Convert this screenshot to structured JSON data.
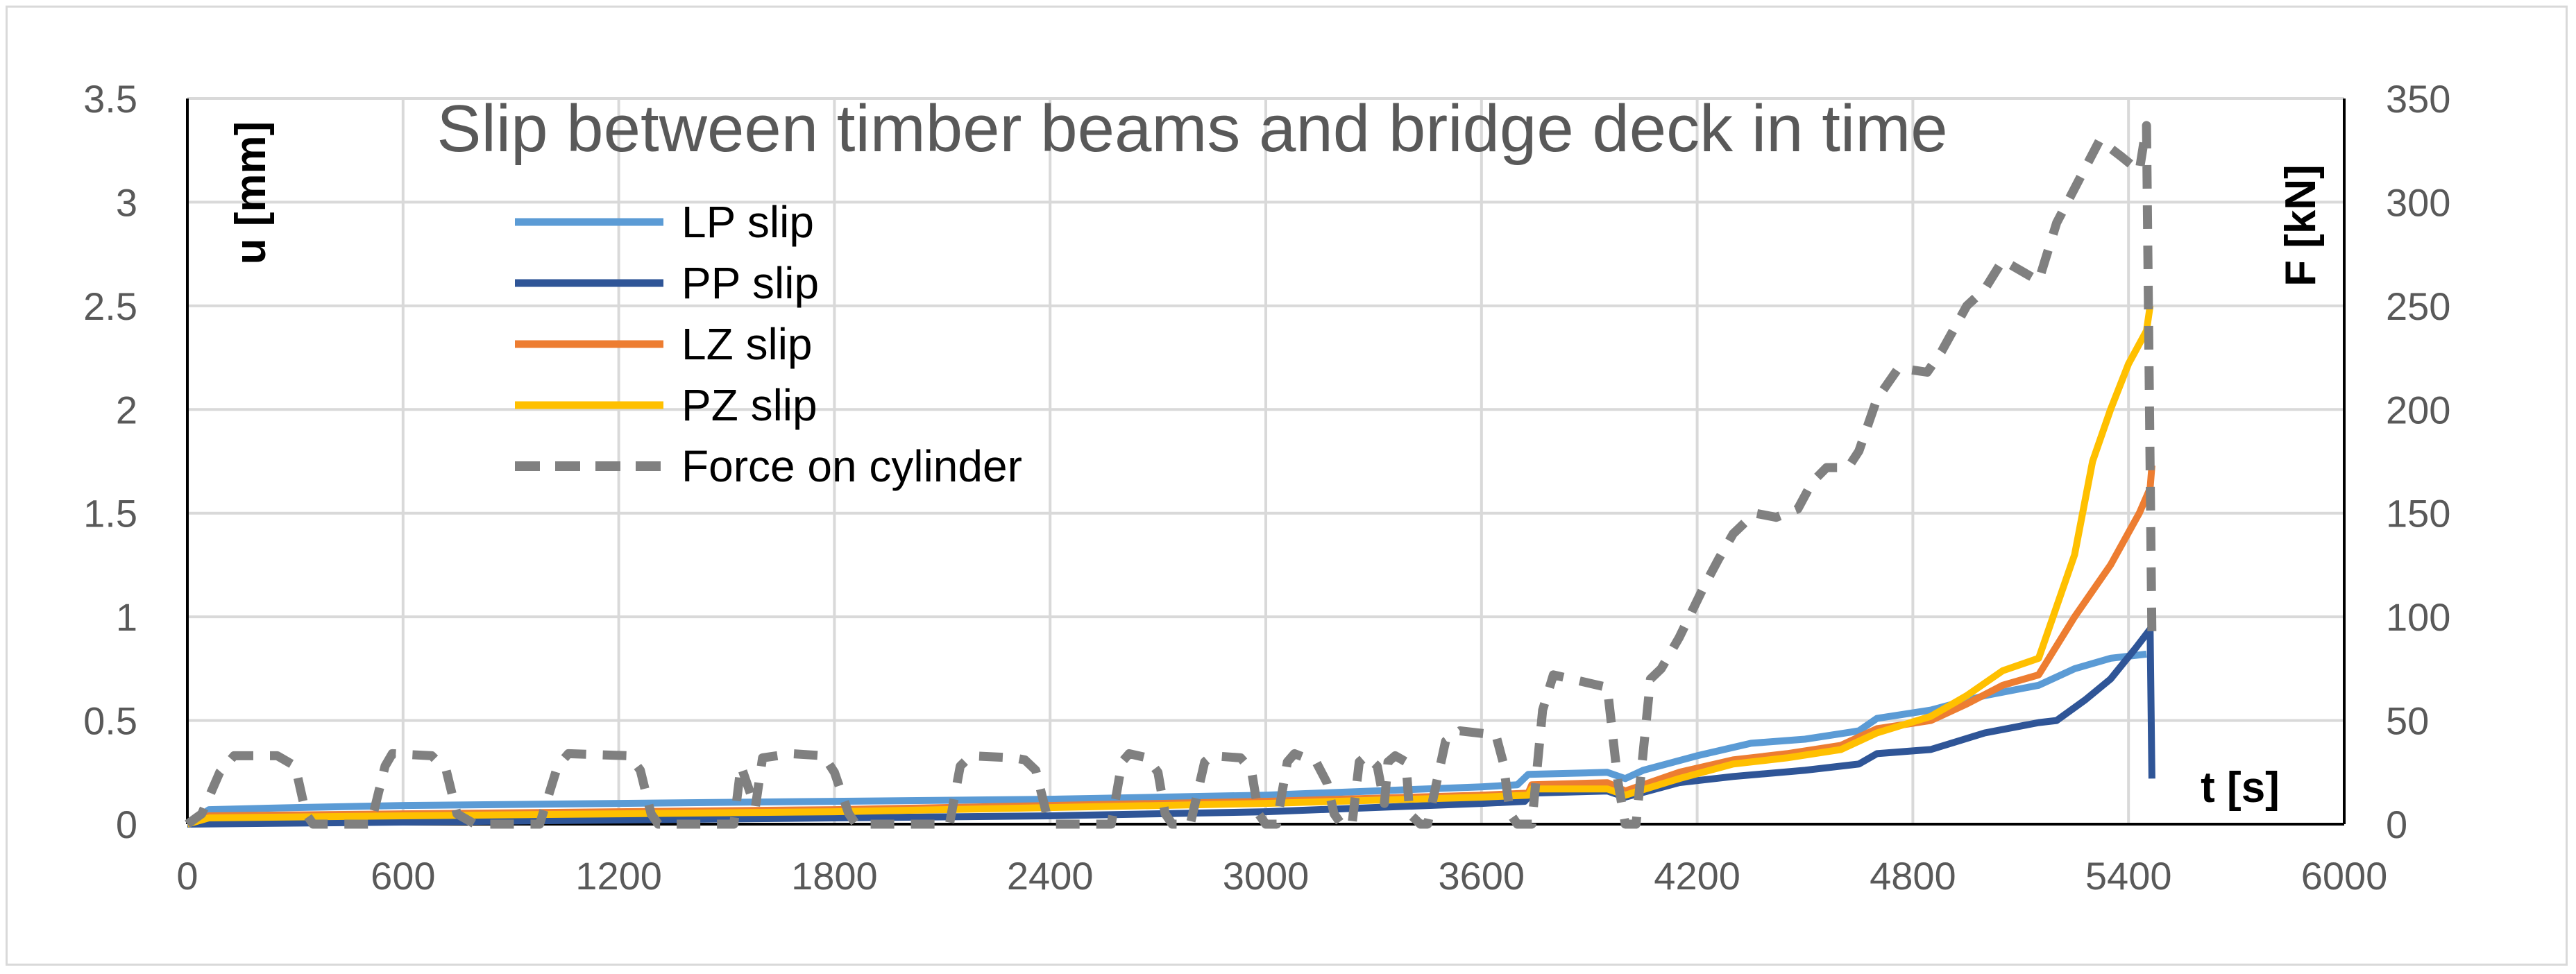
{
  "chart_data": {
    "type": "line",
    "title": "Slip between timber beams and bridge deck in time",
    "xlabel": "t [s]",
    "ylabel": "u [mm]",
    "y2label": "F [kN]",
    "xlim": [
      0,
      6000
    ],
    "xticks": [
      0,
      600,
      1200,
      1800,
      2400,
      3000,
      3600,
      4200,
      4800,
      5400,
      6000
    ],
    "ylim": [
      0,
      3.5
    ],
    "yticks": [
      "0",
      "0.5",
      "1",
      "1.5",
      "2",
      "2.5",
      "3",
      "3.5"
    ],
    "y2lim": [
      0,
      350
    ],
    "y2ticks": [
      "0",
      "50",
      "100",
      "150",
      "200",
      "250",
      "300",
      "350"
    ],
    "grid": true,
    "legend_position": "top-left",
    "series": [
      {
        "name": "LP slip",
        "color": "#5b9bd5",
        "axis": "left",
        "style": "solid",
        "points": [
          [
            0,
            0
          ],
          [
            60,
            0.07
          ],
          [
            300,
            0.08
          ],
          [
            600,
            0.09
          ],
          [
            1200,
            0.1
          ],
          [
            1800,
            0.11
          ],
          [
            2400,
            0.12
          ],
          [
            3000,
            0.14
          ],
          [
            3600,
            0.18
          ],
          [
            3700,
            0.19
          ],
          [
            3730,
            0.24
          ],
          [
            3950,
            0.25
          ],
          [
            4000,
            0.22
          ],
          [
            4050,
            0.26
          ],
          [
            4200,
            0.33
          ],
          [
            4350,
            0.39
          ],
          [
            4500,
            0.41
          ],
          [
            4650,
            0.45
          ],
          [
            4700,
            0.51
          ],
          [
            4850,
            0.55
          ],
          [
            5000,
            0.62
          ],
          [
            5150,
            0.67
          ],
          [
            5250,
            0.75
          ],
          [
            5350,
            0.8
          ],
          [
            5450,
            0.82
          ]
        ]
      },
      {
        "name": "PP slip",
        "color": "#2f5597",
        "axis": "left",
        "style": "solid",
        "points": [
          [
            0,
            0
          ],
          [
            600,
            0.01
          ],
          [
            1200,
            0.02
          ],
          [
            1800,
            0.03
          ],
          [
            2400,
            0.04
          ],
          [
            3000,
            0.06
          ],
          [
            3600,
            0.1
          ],
          [
            3720,
            0.11
          ],
          [
            3740,
            0.15
          ],
          [
            3950,
            0.16
          ],
          [
            4000,
            0.13
          ],
          [
            4150,
            0.2
          ],
          [
            4300,
            0.23
          ],
          [
            4500,
            0.26
          ],
          [
            4650,
            0.29
          ],
          [
            4700,
            0.34
          ],
          [
            4850,
            0.36
          ],
          [
            5000,
            0.44
          ],
          [
            5150,
            0.49
          ],
          [
            5200,
            0.5
          ],
          [
            5280,
            0.6
          ],
          [
            5350,
            0.7
          ],
          [
            5420,
            0.85
          ],
          [
            5460,
            0.94
          ],
          [
            5465,
            0.22
          ]
        ]
      },
      {
        "name": "LZ slip",
        "color": "#ed7d31",
        "axis": "left",
        "style": "solid",
        "points": [
          [
            0,
            0
          ],
          [
            60,
            0.04
          ],
          [
            600,
            0.05
          ],
          [
            1200,
            0.06
          ],
          [
            1800,
            0.07
          ],
          [
            2400,
            0.09
          ],
          [
            3000,
            0.11
          ],
          [
            3600,
            0.14
          ],
          [
            3730,
            0.15
          ],
          [
            3740,
            0.19
          ],
          [
            3950,
            0.2
          ],
          [
            4000,
            0.16
          ],
          [
            4150,
            0.25
          ],
          [
            4300,
            0.31
          ],
          [
            4450,
            0.34
          ],
          [
            4600,
            0.38
          ],
          [
            4700,
            0.46
          ],
          [
            4850,
            0.5
          ],
          [
            4950,
            0.58
          ],
          [
            5050,
            0.67
          ],
          [
            5150,
            0.72
          ],
          [
            5250,
            1.0
          ],
          [
            5350,
            1.25
          ],
          [
            5430,
            1.5
          ],
          [
            5460,
            1.62
          ],
          [
            5465,
            1.73
          ]
        ]
      },
      {
        "name": "PZ slip",
        "color": "#ffc000",
        "axis": "left",
        "style": "solid",
        "points": [
          [
            0,
            0
          ],
          [
            60,
            0.03
          ],
          [
            600,
            0.04
          ],
          [
            1200,
            0.05
          ],
          [
            1800,
            0.06
          ],
          [
            2400,
            0.08
          ],
          [
            3000,
            0.1
          ],
          [
            3600,
            0.13
          ],
          [
            3730,
            0.14
          ],
          [
            3740,
            0.17
          ],
          [
            3950,
            0.17
          ],
          [
            4000,
            0.14
          ],
          [
            4150,
            0.22
          ],
          [
            4300,
            0.29
          ],
          [
            4450,
            0.32
          ],
          [
            4600,
            0.36
          ],
          [
            4700,
            0.44
          ],
          [
            4850,
            0.52
          ],
          [
            4950,
            0.62
          ],
          [
            5050,
            0.74
          ],
          [
            5150,
            0.8
          ],
          [
            5250,
            1.3
          ],
          [
            5300,
            1.75
          ],
          [
            5350,
            2.0
          ],
          [
            5400,
            2.22
          ],
          [
            5450,
            2.38
          ],
          [
            5460,
            2.5
          ]
        ]
      },
      {
        "name": "Force on cylinder",
        "color": "#808080",
        "axis": "right",
        "style": "dashed",
        "points": [
          [
            0,
            0
          ],
          [
            40,
            5
          ],
          [
            90,
            25
          ],
          [
            130,
            33
          ],
          [
            250,
            33
          ],
          [
            300,
            28
          ],
          [
            330,
            5
          ],
          [
            350,
            0
          ],
          [
            510,
            0
          ],
          [
            550,
            28
          ],
          [
            570,
            34
          ],
          [
            680,
            33
          ],
          [
            720,
            26
          ],
          [
            750,
            5
          ],
          [
            800,
            0
          ],
          [
            980,
            0
          ],
          [
            1030,
            28
          ],
          [
            1060,
            34
          ],
          [
            1230,
            33
          ],
          [
            1260,
            26
          ],
          [
            1290,
            5
          ],
          [
            1310,
            0
          ],
          [
            1520,
            0
          ],
          [
            1540,
            28
          ],
          [
            1580,
            8
          ],
          [
            1600,
            32
          ],
          [
            1680,
            34
          ],
          [
            1770,
            33
          ],
          [
            1800,
            25
          ],
          [
            1840,
            5
          ],
          [
            1860,
            0
          ],
          [
            2120,
            0
          ],
          [
            2150,
            28
          ],
          [
            2180,
            33
          ],
          [
            2300,
            32
          ],
          [
            2330,
            31
          ],
          [
            2360,
            26
          ],
          [
            2390,
            5
          ],
          [
            2410,
            0
          ],
          [
            2570,
            0
          ],
          [
            2600,
            30
          ],
          [
            2620,
            34
          ],
          [
            2670,
            32
          ],
          [
            2700,
            25
          ],
          [
            2720,
            5
          ],
          [
            2740,
            0
          ],
          [
            2790,
            0
          ],
          [
            2830,
            30
          ],
          [
            2850,
            33
          ],
          [
            2930,
            32
          ],
          [
            2960,
            26
          ],
          [
            2980,
            5
          ],
          [
            3000,
            0
          ],
          [
            3030,
            0
          ],
          [
            3060,
            30
          ],
          [
            3080,
            34
          ],
          [
            3140,
            30
          ],
          [
            3170,
            20
          ],
          [
            3190,
            5
          ],
          [
            3210,
            0
          ],
          [
            3240,
            0
          ],
          [
            3260,
            30
          ],
          [
            3280,
            33
          ],
          [
            3310,
            28
          ],
          [
            3330,
            10
          ],
          [
            3340,
            30
          ],
          [
            3360,
            33
          ],
          [
            3390,
            30
          ],
          [
            3400,
            5
          ],
          [
            3430,
            0
          ],
          [
            3450,
            0
          ],
          [
            3500,
            40
          ],
          [
            3540,
            45
          ],
          [
            3640,
            43
          ],
          [
            3660,
            30
          ],
          [
            3680,
            5
          ],
          [
            3700,
            0
          ],
          [
            3740,
            0
          ],
          [
            3770,
            55
          ],
          [
            3800,
            72
          ],
          [
            3900,
            68
          ],
          [
            3950,
            66
          ],
          [
            3980,
            20
          ],
          [
            4000,
            0
          ],
          [
            4030,
            0
          ],
          [
            4070,
            70
          ],
          [
            4100,
            75
          ],
          [
            4150,
            90
          ],
          [
            4220,
            115
          ],
          [
            4260,
            128
          ],
          [
            4300,
            140
          ],
          [
            4360,
            150
          ],
          [
            4420,
            148
          ],
          [
            4480,
            152
          ],
          [
            4520,
            165
          ],
          [
            4560,
            172
          ],
          [
            4620,
            172
          ],
          [
            4650,
            180
          ],
          [
            4700,
            205
          ],
          [
            4760,
            220
          ],
          [
            4840,
            218
          ],
          [
            4880,
            228
          ],
          [
            4950,
            250
          ],
          [
            5000,
            258
          ],
          [
            5050,
            272
          ],
          [
            5150,
            262
          ],
          [
            5200,
            290
          ],
          [
            5260,
            310
          ],
          [
            5320,
            330
          ],
          [
            5380,
            322
          ],
          [
            5430,
            315
          ],
          [
            5450,
            337
          ],
          [
            5465,
            90
          ]
        ]
      }
    ]
  }
}
